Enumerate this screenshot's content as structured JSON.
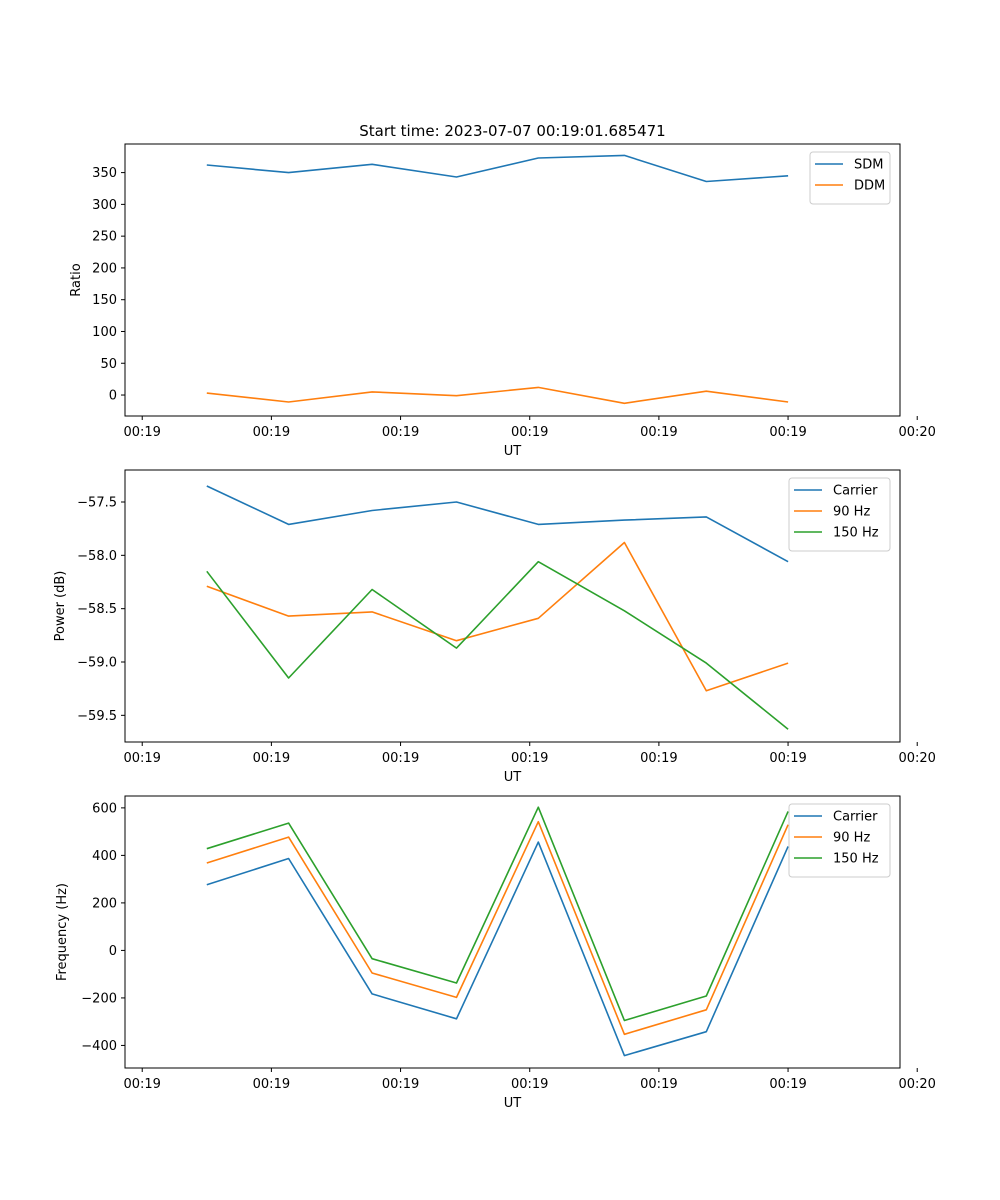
{
  "figure": {
    "title": "Start time: 2023-07-07 00:19:01.685471"
  },
  "chart_data": [
    {
      "type": "line",
      "title": "Start time: 2023-07-07 00:19:01.685471",
      "xlabel": "UT",
      "ylabel": "Ratio",
      "xlim": [
        -0.6,
        8.4
      ],
      "ylim": [
        -33,
        395
      ],
      "x": [
        0.35,
        1.3,
        2.27,
        3.25,
        4.2,
        5.2,
        6.15,
        7.1
      ],
      "x_ticks": [
        -0.4,
        1.1,
        2.6,
        4.1,
        5.6,
        7.1,
        8.6
      ],
      "x_tick_labels": [
        "00:19",
        "00:19",
        "00:19",
        "00:19",
        "00:19",
        "00:19",
        "00:20"
      ],
      "y_ticks": [
        0,
        50,
        100,
        150,
        200,
        250,
        300,
        350
      ],
      "y_tick_labels": [
        "0",
        "50",
        "100",
        "150",
        "200",
        "250",
        "300",
        "350"
      ],
      "legend_position": "top-right",
      "series": [
        {
          "name": "SDM",
          "color": "#1f77b4",
          "values": [
            362,
            350,
            363,
            343,
            373,
            377,
            336,
            345
          ]
        },
        {
          "name": "DDM",
          "color": "#ff7f0e",
          "values": [
            3,
            -11,
            5,
            -1,
            12,
            -13,
            6,
            -11
          ]
        }
      ]
    },
    {
      "type": "line",
      "title": "",
      "xlabel": "UT",
      "ylabel": "Power (dB)",
      "xlim": [
        -0.6,
        8.4
      ],
      "ylim": [
        -59.75,
        -57.2
      ],
      "x": [
        0.35,
        1.3,
        2.27,
        3.25,
        4.2,
        5.2,
        6.15,
        7.1
      ],
      "x_ticks": [
        -0.4,
        1.1,
        2.6,
        4.1,
        5.6,
        7.1,
        8.6
      ],
      "x_tick_labels": [
        "00:19",
        "00:19",
        "00:19",
        "00:19",
        "00:19",
        "00:19",
        "00:20"
      ],
      "y_ticks": [
        -59.5,
        -59.0,
        -58.5,
        -58.0,
        -57.5
      ],
      "y_tick_labels": [
        "−59.5",
        "−59.0",
        "−58.5",
        "−58.0",
        "−57.5"
      ],
      "legend_position": "top-right",
      "series": [
        {
          "name": "Carrier",
          "color": "#1f77b4",
          "values": [
            -57.35,
            -57.71,
            -57.58,
            -57.5,
            -57.71,
            -57.67,
            -57.64,
            -58.06
          ]
        },
        {
          "name": "90 Hz",
          "color": "#ff7f0e",
          "values": [
            -58.29,
            -58.57,
            -58.53,
            -58.8,
            -58.59,
            -57.88,
            -59.27,
            -59.01
          ]
        },
        {
          "name": "150 Hz",
          "color": "#2ca02c",
          "values": [
            -58.15,
            -59.15,
            -58.32,
            -58.87,
            -58.06,
            -58.52,
            -59.01,
            -59.63
          ]
        }
      ]
    },
    {
      "type": "line",
      "title": "",
      "xlabel": "UT",
      "ylabel": "Frequency (Hz)",
      "xlim": [
        -0.6,
        8.4
      ],
      "ylim": [
        -495,
        650
      ],
      "x": [
        0.35,
        1.3,
        2.27,
        3.25,
        4.2,
        5.2,
        6.15,
        7.1
      ],
      "x_ticks": [
        -0.4,
        1.1,
        2.6,
        4.1,
        5.6,
        7.1,
        8.6
      ],
      "x_tick_labels": [
        "00:19",
        "00:19",
        "00:19",
        "00:19",
        "00:19",
        "00:19",
        "00:20"
      ],
      "y_ticks": [
        -400,
        -200,
        0,
        200,
        400,
        600
      ],
      "y_tick_labels": [
        "−400",
        "−200",
        "0",
        "200",
        "400",
        "600"
      ],
      "legend_position": "top-right",
      "series": [
        {
          "name": "Carrier",
          "color": "#1f77b4",
          "values": [
            276,
            387,
            -183,
            -288,
            456,
            -443,
            -342,
            438
          ]
        },
        {
          "name": "90 Hz",
          "color": "#ff7f0e",
          "values": [
            368,
            477,
            -95,
            -198,
            542,
            -353,
            -250,
            529
          ]
        },
        {
          "name": "150 Hz",
          "color": "#2ca02c",
          "values": [
            428,
            536,
            -35,
            -137,
            603,
            -295,
            -192,
            585
          ]
        }
      ]
    }
  ]
}
